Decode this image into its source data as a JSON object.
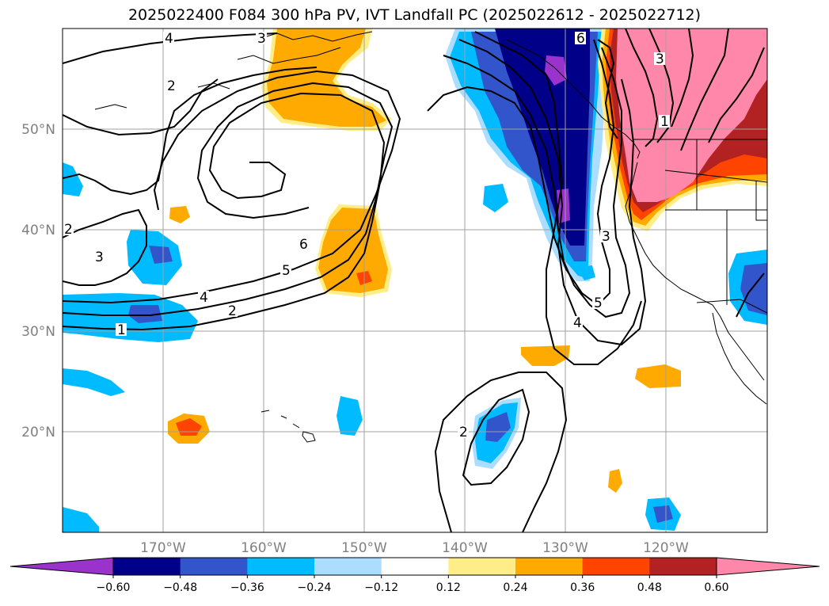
{
  "title": "2025022400 F084 300 hPa PV, IVT Landfall PC (2025022612 - 2025022712)",
  "lat_labels": [
    "50°N",
    "40°N",
    "30°N",
    "20°N"
  ],
  "lon_labels": [
    "170°W",
    "160°W",
    "150°W",
    "140°W",
    "130°W",
    "120°W"
  ],
  "colorbar": {
    "colors": [
      "#9933cc",
      "#000088",
      "#3355cc",
      "#00bbff",
      "#aaddff",
      "#ffffff",
      "#ffee88",
      "#ffaa00",
      "#ff4400",
      "#b22222",
      "#ff88aa"
    ],
    "tick_labels": [
      "−0.60",
      "−0.48",
      "−0.36",
      "−0.24",
      "−0.12",
      "0.12",
      "0.24",
      "0.36",
      "0.48",
      "0.60"
    ]
  },
  "contour_labels": [
    "4",
    "3",
    "2",
    "6",
    "3",
    "1",
    "6",
    "5",
    "4",
    "2",
    "1",
    "2",
    "3",
    "3",
    "5",
    "4",
    "2"
  ]
}
